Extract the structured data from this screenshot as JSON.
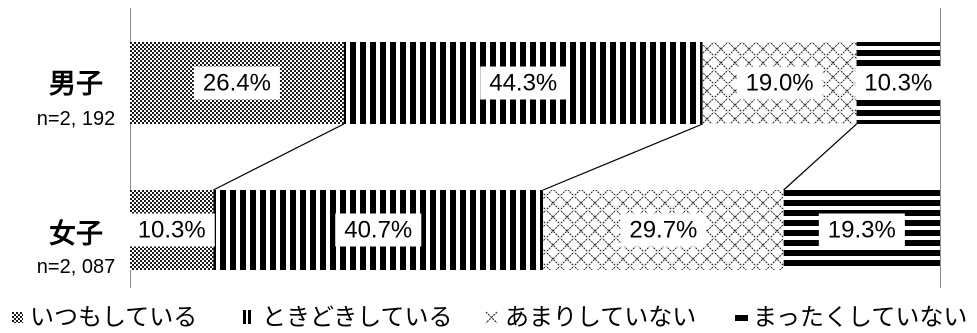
{
  "chart_data": {
    "type": "bar",
    "orientation": "horizontal",
    "stacked": "percent",
    "categories": [
      "男子",
      "女子"
    ],
    "sample_sizes": [
      "n=2, 192",
      "n=2, 087"
    ],
    "series": [
      {
        "name": "いつもしている",
        "values": [
          26.4,
          10.3
        ],
        "pattern": "dense-dots"
      },
      {
        "name": "ときどきしている",
        "values": [
          44.3,
          40.7
        ],
        "pattern": "vertical-stripes"
      },
      {
        "name": "あまりしていない",
        "values": [
          19.0,
          29.7
        ],
        "pattern": "diagonal-crosshatch"
      },
      {
        "name": "まったくしていない",
        "values": [
          10.3,
          19.3
        ],
        "pattern": "horizontal-stripes"
      }
    ],
    "xlim": [
      0,
      100
    ],
    "grid": false,
    "data_labels": true,
    "series_lines": true,
    "legend_position": "bottom"
  }
}
